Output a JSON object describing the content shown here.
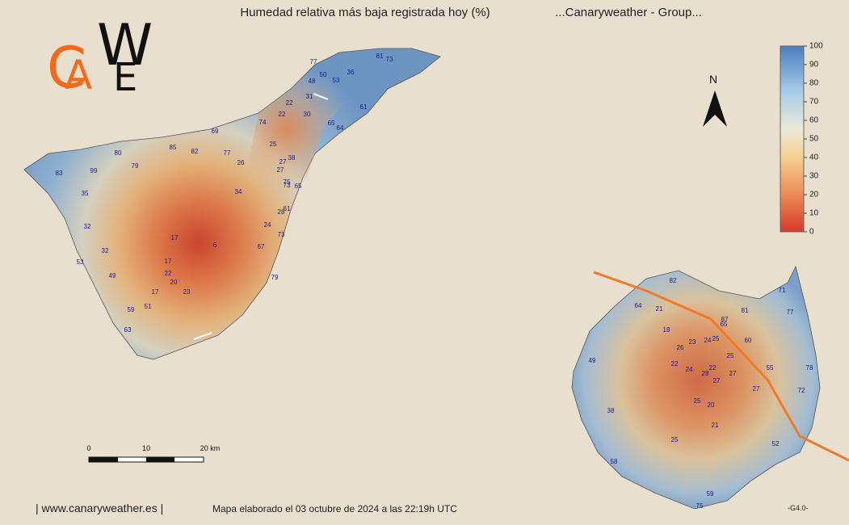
{
  "header": {
    "title": "Humedad relativa más baja registrada hoy (%)",
    "subtitle": "...Canaryweather - Group..."
  },
  "logo": {
    "letters": [
      "C",
      "A",
      "W",
      "E"
    ]
  },
  "north": "N",
  "legend": {
    "ticks": [
      0,
      10,
      20,
      30,
      40,
      50,
      60,
      70,
      80,
      90,
      100
    ]
  },
  "scale_bar": {
    "labels": [
      "0",
      "10",
      "20 km"
    ]
  },
  "stations": {
    "tenerife": [
      77,
      81,
      73,
      50,
      36,
      48,
      53,
      31,
      61,
      22,
      22,
      30,
      74,
      65,
      64,
      69,
      25,
      80,
      85,
      82,
      77,
      38,
      26,
      27,
      79,
      83,
      99,
      27,
      75,
      73,
      65,
      35,
      34,
      61,
      28,
      24,
      73,
      32,
      17,
      6,
      67,
      32,
      53,
      17,
      22,
      49,
      20,
      79,
      17,
      23,
      51,
      59,
      63
    ],
    "gran_canaria": [
      82,
      71,
      64,
      21,
      81,
      77,
      87,
      65,
      18,
      23,
      24,
      25,
      60,
      26,
      25,
      49,
      22,
      24,
      22,
      28,
      27,
      55,
      78,
      27,
      72,
      27,
      25,
      20,
      38,
      21,
      25,
      52,
      58,
      59,
      75
    ]
  },
  "footer": {
    "site": "| www.canaryweather.es |",
    "note": "Mapa elaborado el 03 octubre de 2024 a las 22:19h UTC",
    "version": "-G4.0-"
  }
}
